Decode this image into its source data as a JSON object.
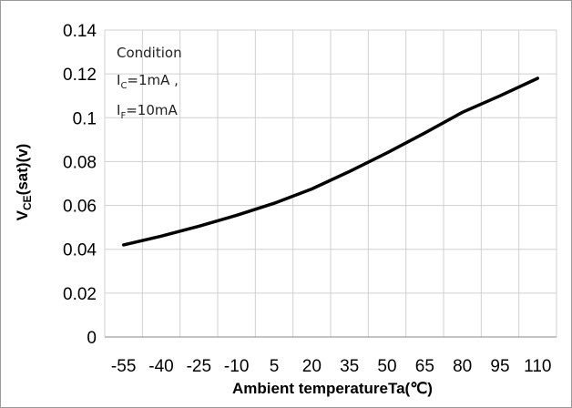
{
  "chart_data": {
    "type": "line",
    "title": "",
    "xlabel": "Ambient temperatureTa(℃)",
    "ylabel": {
      "main": "V",
      "sub": "CE",
      "rest": "(sat)(v)"
    },
    "x_ticks": [
      "-55",
      "-40",
      "-25",
      "-10",
      "5",
      "20",
      "35",
      "50",
      "65",
      "80",
      "95",
      "110"
    ],
    "y_ticks": [
      "0",
      "0.02",
      "0.04",
      "0.06",
      "0.08",
      "0.1",
      "0.12",
      "0.14"
    ],
    "xlim": [
      -55,
      110
    ],
    "ylim": [
      0,
      0.14
    ],
    "grid": true,
    "legend": "none",
    "annotation": {
      "line1": "Condition",
      "line2": {
        "main": "I",
        "sub": "C",
        "rest": "=1mA ,"
      },
      "line3": {
        "main": "I",
        "sub": "F",
        "rest": "=10mA"
      }
    },
    "series": [
      {
        "color": "#000000",
        "x": [
          -55,
          -40,
          -25,
          -10,
          5,
          20,
          35,
          50,
          65,
          80,
          95,
          110
        ],
        "y": [
          0.042,
          0.046,
          0.0505,
          0.0555,
          0.061,
          0.0675,
          0.0755,
          0.084,
          0.093,
          0.1025,
          0.11,
          0.118
        ]
      }
    ]
  }
}
